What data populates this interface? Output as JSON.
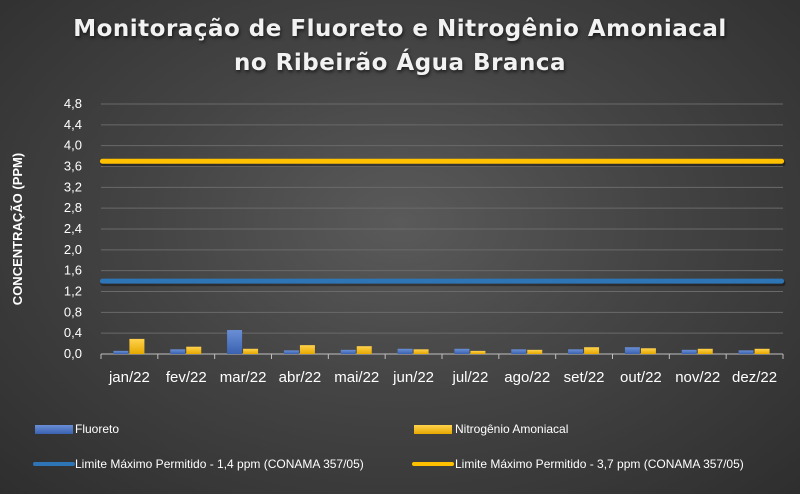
{
  "chart_data": {
    "type": "bar",
    "title_line1": "Monitoração de Fluoreto e Nitrogênio Amoniacal",
    "title_line2": "no Ribeirão Água Branca",
    "ylabel": "CONCENTRAÇÃO (PPM)",
    "xlabel": "",
    "ylim": [
      0,
      4.8
    ],
    "yticks": [
      "0,0",
      "0,4",
      "0,8",
      "1,2",
      "1,6",
      "2,0",
      "2,4",
      "2,8",
      "3,2",
      "3,6",
      "4,0",
      "4,4",
      "4,8"
    ],
    "ytick_values": [
      0,
      0.4,
      0.8,
      1.2,
      1.6,
      2.0,
      2.4,
      2.8,
      3.2,
      3.6,
      4.0,
      4.4,
      4.8
    ],
    "categories": [
      "jan/22",
      "fev/22",
      "mar/22",
      "abr/22",
      "mai/22",
      "jun/22",
      "jul/22",
      "ago/22",
      "set/22",
      "out/22",
      "nov/22",
      "dez/22"
    ],
    "series": [
      {
        "name": "Fluoreto",
        "color": "#4472c4",
        "values": [
          0.06,
          0.09,
          0.46,
          0.07,
          0.08,
          0.1,
          0.1,
          0.09,
          0.09,
          0.13,
          0.08,
          0.07
        ]
      },
      {
        "name": "Nitrogênio Amoniacal",
        "color": "#ffc000",
        "values": [
          0.29,
          0.14,
          0.1,
          0.17,
          0.15,
          0.09,
          0.06,
          0.08,
          0.13,
          0.11,
          0.1,
          0.1
        ]
      }
    ],
    "reference_lines": [
      {
        "name": "Limite Máximo Permitido - 1,4 ppm (CONAMA 357/05)",
        "value": 1.4,
        "color": "#2e75b6"
      },
      {
        "name": "Limite Máximo Permitido - 3,7 ppm (CONAMA 357/05)",
        "value": 3.7,
        "color": "#ffc000"
      }
    ],
    "grid": true,
    "legend_position": "bottom"
  }
}
